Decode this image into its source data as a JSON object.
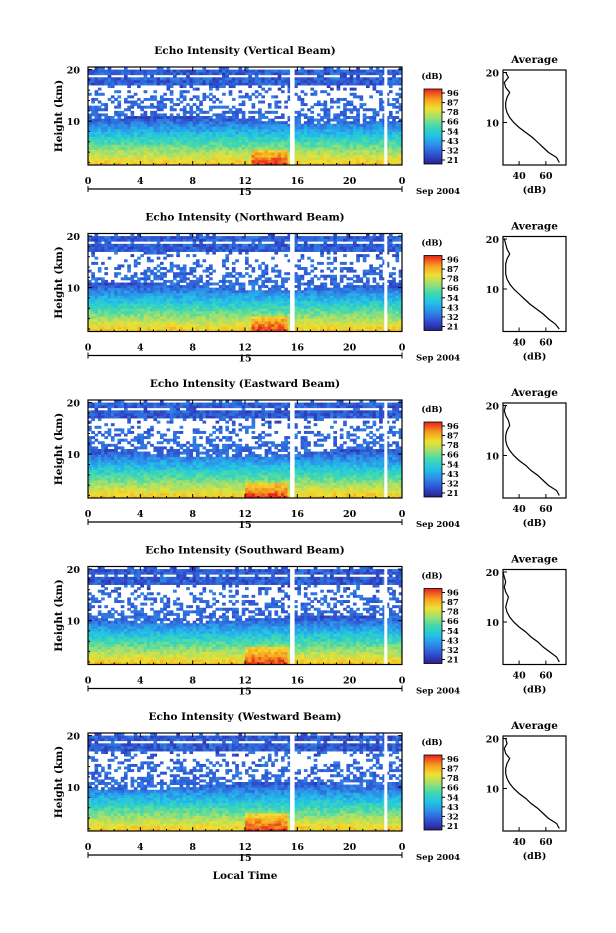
{
  "figure": {
    "x_axis_label": "Local Time",
    "day_label": "15",
    "month_year_label": "Sep 2004",
    "colorbar_unit": "(dB)",
    "colorbar_ticks": [
      "96",
      "87",
      "78",
      "66",
      "54",
      "43",
      "32",
      "21"
    ],
    "profile_title": "Average",
    "profile_xlabel": "(dB)",
    "profile_xticks": [
      "40",
      "60"
    ],
    "height_label": "Height (km)",
    "x_ticks": [
      "0",
      "4",
      "8",
      "12",
      "16",
      "20",
      "0"
    ],
    "y_ticks": [
      "20",
      "10"
    ]
  },
  "chart_data": [
    {
      "type": "heatmap",
      "title": "Echo Intensity (Vertical Beam)",
      "xlabel": "",
      "ylabel": "Height (km)",
      "xlim": [
        0,
        24
      ],
      "ylim": [
        1.5,
        20.5
      ],
      "color_scale": {
        "min": 21,
        "max": 96,
        "unit": "dB"
      },
      "data_gaps_hours": [
        15.6,
        22.8
      ],
      "enhanced_echo_region": {
        "hours": [
          12.5,
          15
        ],
        "height_km": [
          1.5,
          4
        ]
      },
      "average_profile": {
        "height_km": [
          2,
          3,
          4,
          5,
          6,
          7,
          8,
          9,
          10,
          11,
          12,
          13,
          14,
          15,
          16,
          17,
          18,
          19,
          20
        ],
        "db": [
          70,
          68,
          62,
          58,
          54,
          50,
          45,
          40,
          36,
          33,
          31,
          30,
          30,
          31,
          33,
          30,
          29,
          32,
          30
        ]
      }
    },
    {
      "type": "heatmap",
      "title": "Echo Intensity (Northward Beam)",
      "xlabel": "",
      "ylabel": "Height (km)",
      "xlim": [
        0,
        24
      ],
      "ylim": [
        1.5,
        20.5
      ],
      "color_scale": {
        "min": 21,
        "max": 96,
        "unit": "dB"
      },
      "data_gaps_hours": [
        15.6,
        22.8
      ],
      "enhanced_echo_region": {
        "hours": [
          12.5,
          15
        ],
        "height_km": [
          1.5,
          4
        ]
      },
      "average_profile": {
        "height_km": [
          2,
          3,
          4,
          5,
          6,
          7,
          8,
          9,
          10,
          11,
          12,
          13,
          14,
          15,
          16,
          17,
          18,
          19,
          20
        ],
        "db": [
          70,
          67,
          62,
          58,
          53,
          48,
          44,
          40,
          36,
          33,
          31,
          30,
          30,
          30,
          31,
          33,
          31,
          30,
          29
        ]
      }
    },
    {
      "type": "heatmap",
      "title": "Echo Intensity (Eastward Beam)",
      "xlabel": "",
      "ylabel": "Height (km)",
      "xlim": [
        0,
        24
      ],
      "ylim": [
        1.5,
        20.5
      ],
      "color_scale": {
        "min": 21,
        "max": 96,
        "unit": "dB"
      },
      "data_gaps_hours": [
        15.6,
        22.8
      ],
      "enhanced_echo_region": {
        "hours": [
          12,
          15
        ],
        "height_km": [
          1.5,
          4
        ]
      },
      "average_profile": {
        "height_km": [
          2,
          3,
          4,
          5,
          6,
          7,
          8,
          9,
          10,
          11,
          12,
          13,
          14,
          15,
          16,
          17,
          18,
          19,
          20
        ],
        "db": [
          70,
          68,
          62,
          58,
          54,
          49,
          45,
          40,
          36,
          33,
          31,
          30,
          30,
          31,
          33,
          32,
          30,
          29,
          30
        ]
      }
    },
    {
      "type": "heatmap",
      "title": "Echo Intensity (Southward Beam)",
      "xlabel": "",
      "ylabel": "Height (km)",
      "xlim": [
        0,
        24
      ],
      "ylim": [
        1.5,
        20.5
      ],
      "color_scale": {
        "min": 21,
        "max": 96,
        "unit": "dB"
      },
      "data_gaps_hours": [
        15.6,
        22.8
      ],
      "enhanced_echo_region": {
        "hours": [
          12,
          15
        ],
        "height_km": [
          1.5,
          4.5
        ]
      },
      "average_profile": {
        "height_km": [
          2,
          3,
          4,
          5,
          6,
          7,
          8,
          9,
          10,
          11,
          12,
          13,
          14,
          15,
          16,
          17,
          18,
          19,
          20
        ],
        "db": [
          70,
          68,
          63,
          58,
          54,
          49,
          45,
          40,
          36,
          33,
          31,
          30,
          31,
          32,
          30,
          29,
          30,
          29,
          28
        ]
      }
    },
    {
      "type": "heatmap",
      "title": "Echo Intensity (Westward Beam)",
      "xlabel": "Local Time",
      "ylabel": "Height (km)",
      "xlim": [
        0,
        24
      ],
      "ylim": [
        1.5,
        20.5
      ],
      "color_scale": {
        "min": 21,
        "max": 96,
        "unit": "dB"
      },
      "data_gaps_hours": [
        15.6,
        22.8
      ],
      "enhanced_echo_region": {
        "hours": [
          12,
          15
        ],
        "height_km": [
          1.5,
          4.5
        ]
      },
      "average_profile": {
        "height_km": [
          2,
          3,
          4,
          5,
          6,
          7,
          8,
          9,
          10,
          11,
          12,
          13,
          14,
          15,
          16,
          17,
          18,
          19,
          20
        ],
        "db": [
          70,
          68,
          62,
          58,
          54,
          49,
          45,
          40,
          36,
          33,
          31,
          30,
          30,
          31,
          33,
          30,
          29,
          31,
          30
        ]
      }
    }
  ]
}
